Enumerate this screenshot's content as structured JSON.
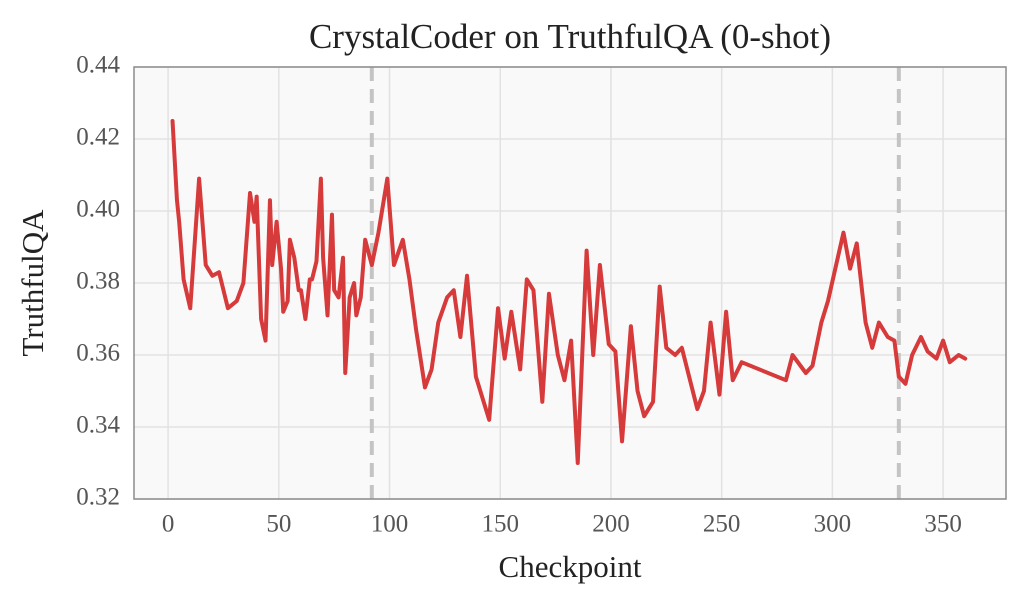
{
  "chart_data": {
    "type": "line",
    "title": "CrystalCoder on TruthfulQA (0-shot)",
    "x_label": "Checkpoint",
    "y_label": "TruthfulQA",
    "x": [
      2,
      4,
      5,
      7,
      10,
      14,
      17,
      20,
      23,
      27,
      31,
      34,
      37,
      39,
      40,
      42,
      44,
      46,
      47,
      49,
      51,
      52,
      54,
      55,
      57,
      59,
      60,
      62,
      64,
      65,
      67,
      69,
      70,
      72,
      74,
      75,
      77,
      79,
      80,
      82,
      84,
      85,
      87,
      89,
      92,
      95,
      99,
      102,
      106,
      109,
      112,
      116,
      119,
      122,
      126,
      129,
      132,
      135,
      139,
      145,
      149,
      152,
      155,
      159,
      162,
      165,
      169,
      172,
      176,
      179,
      182,
      185,
      189,
      192,
      195,
      199,
      202,
      205,
      209,
      212,
      215,
      219,
      222,
      225,
      229,
      232,
      239,
      242,
      245,
      249,
      252,
      255,
      259,
      279,
      282,
      288,
      291,
      295,
      298,
      305,
      308,
      311,
      315,
      318,
      321,
      325,
      328,
      330,
      333,
      336,
      340,
      343,
      347,
      350,
      353,
      357,
      360
    ],
    "series": [
      {
        "name": "CrystalCoder",
        "color": "#d63a3a",
        "values": [
          0.425,
          0.403,
          0.397,
          0.381,
          0.373,
          0.409,
          0.385,
          0.382,
          0.383,
          0.373,
          0.375,
          0.38,
          0.405,
          0.397,
          0.404,
          0.37,
          0.364,
          0.403,
          0.385,
          0.397,
          0.384,
          0.372,
          0.375,
          0.392,
          0.387,
          0.378,
          0.378,
          0.37,
          0.381,
          0.381,
          0.386,
          0.409,
          0.387,
          0.371,
          0.399,
          0.378,
          0.376,
          0.387,
          0.355,
          0.376,
          0.38,
          0.371,
          0.376,
          0.392,
          0.385,
          0.394,
          0.409,
          0.385,
          0.392,
          0.381,
          0.367,
          0.351,
          0.356,
          0.369,
          0.376,
          0.378,
          0.365,
          0.382,
          0.354,
          0.342,
          0.373,
          0.359,
          0.372,
          0.356,
          0.381,
          0.378,
          0.347,
          0.377,
          0.36,
          0.353,
          0.364,
          0.33,
          0.389,
          0.36,
          0.385,
          0.363,
          0.361,
          0.336,
          0.368,
          0.35,
          0.343,
          0.347,
          0.379,
          0.362,
          0.36,
          0.362,
          0.345,
          0.35,
          0.369,
          0.349,
          0.372,
          0.353,
          0.358,
          0.353,
          0.36,
          0.355,
          0.357,
          0.369,
          0.375,
          0.394,
          0.384,
          0.391,
          0.369,
          0.362,
          0.369,
          0.365,
          0.364,
          0.354,
          0.352,
          0.36,
          0.365,
          0.361,
          0.359,
          0.364,
          0.358,
          0.36,
          0.359
        ]
      }
    ],
    "vlines": [
      92,
      330
    ],
    "xlim": [
      -15.4,
      378.4
    ],
    "xticks": [
      0,
      50,
      100,
      150,
      200,
      250,
      300,
      350
    ],
    "ylim": [
      0.32,
      0.44
    ],
    "yticks": [
      0.32,
      0.34,
      0.36,
      0.38,
      {
        "value": 0.4,
        "label": "0.40"
      },
      0.42,
      0.44
    ],
    "grid": true
  }
}
